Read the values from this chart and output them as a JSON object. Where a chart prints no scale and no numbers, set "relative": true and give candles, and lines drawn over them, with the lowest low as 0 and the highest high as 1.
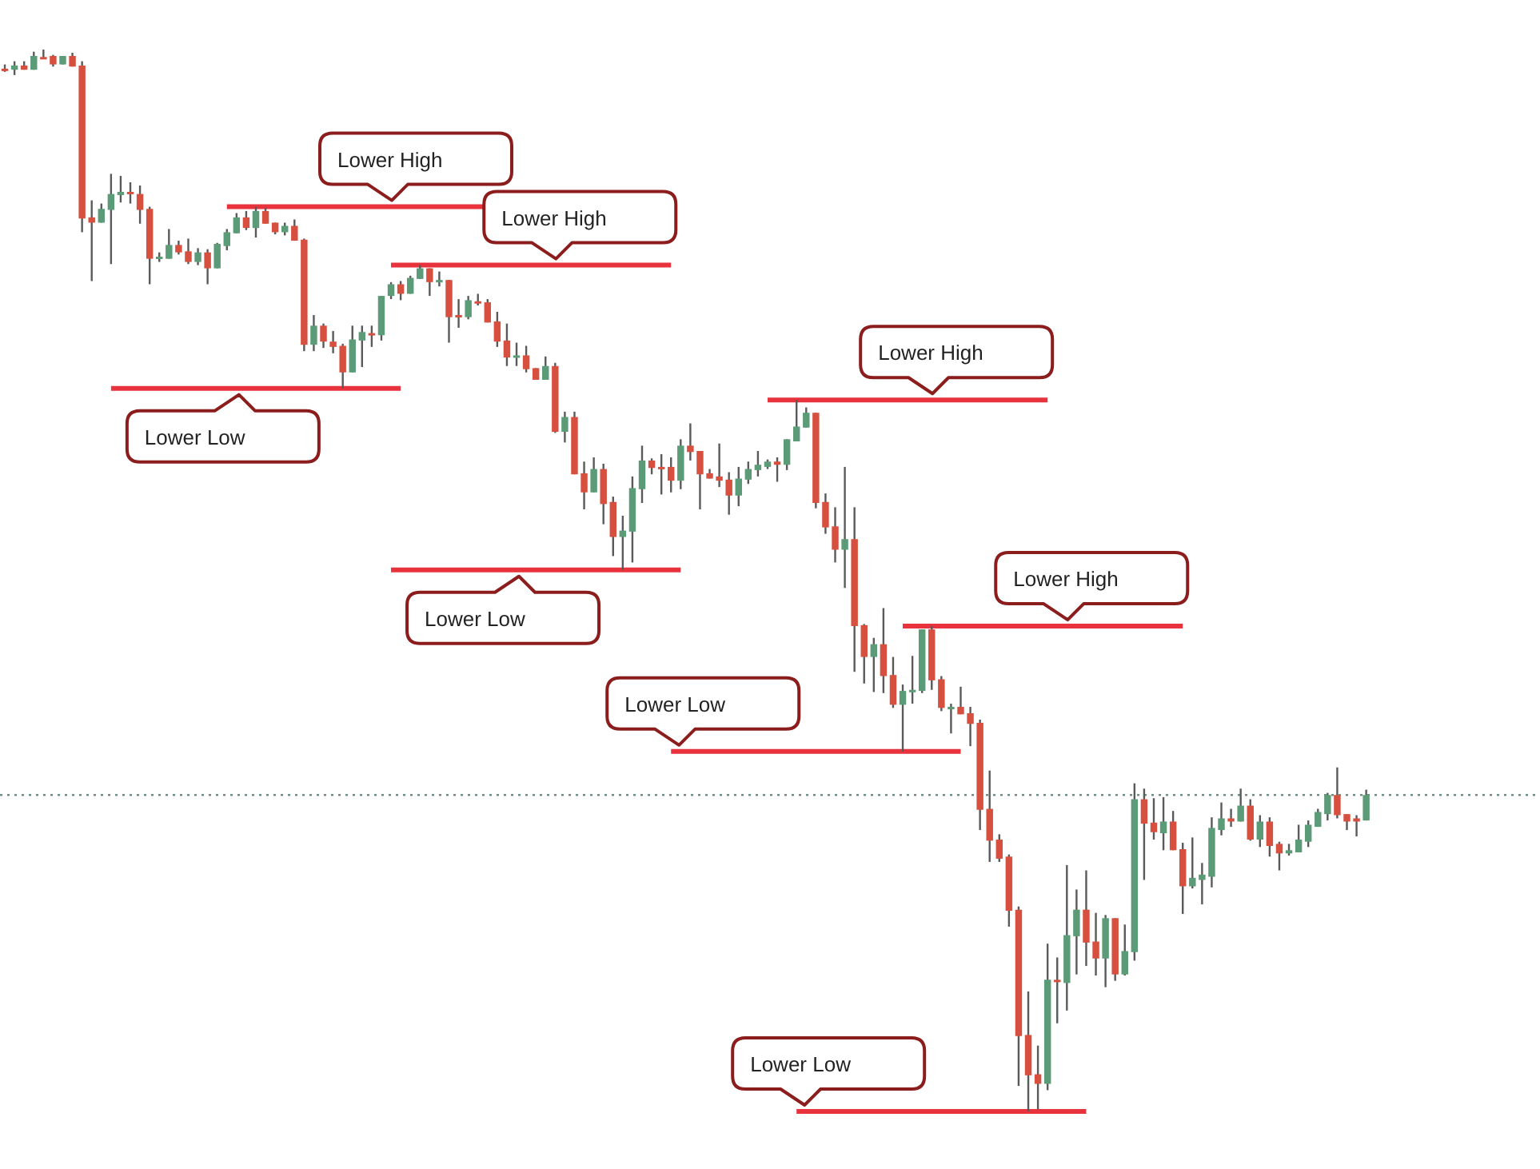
{
  "chart_data": {
    "type": "candlestick",
    "relative": true,
    "categories": [
      null,
      null,
      null,
      null,
      null,
      null,
      null,
      null,
      null,
      null,
      null,
      null,
      null,
      null,
      null,
      null,
      null,
      null,
      null,
      null,
      null,
      null,
      null,
      null,
      null,
      null,
      null,
      null,
      null,
      null,
      null,
      null,
      null,
      null,
      null,
      null,
      null,
      null,
      null,
      null,
      null,
      null,
      null,
      null,
      null,
      null,
      null,
      null,
      null,
      null,
      null,
      null,
      null,
      null,
      null,
      null,
      null,
      null,
      null,
      null,
      null,
      null,
      null,
      null,
      null,
      null,
      null,
      null,
      null,
      null,
      null,
      null,
      null,
      null,
      null,
      null,
      null,
      null,
      null,
      null,
      null,
      null,
      null,
      null,
      null,
      null,
      null,
      null,
      null,
      null,
      null,
      null,
      null,
      null,
      null,
      null,
      null,
      null,
      null,
      null,
      null,
      null,
      null,
      null,
      null,
      null,
      null,
      null,
      null,
      null,
      null,
      null,
      null,
      null,
      null,
      null,
      null,
      null,
      null,
      null,
      null,
      null,
      null,
      null,
      null,
      null,
      null,
      null,
      null,
      null,
      null,
      null,
      null,
      null,
      null,
      null,
      null,
      null,
      null,
      null,
      null,
      null
    ],
    "ohlc": [
      [
        0.982,
        0.986,
        0.979,
        0.98
      ],
      [
        0.981,
        0.989,
        0.976,
        0.985
      ],
      [
        0.985,
        0.989,
        0.981,
        0.981
      ],
      [
        0.981,
        0.998,
        0.981,
        0.994
      ],
      [
        0.993,
        1.0,
        0.991,
        0.992
      ],
      [
        0.994,
        0.995,
        0.984,
        0.986
      ],
      [
        0.986,
        0.994,
        0.986,
        0.994
      ],
      [
        0.994,
        0.997,
        0.984,
        0.984
      ],
      [
        0.985,
        0.989,
        0.828,
        0.841
      ],
      [
        0.842,
        0.858,
        0.782,
        0.837
      ],
      [
        0.837,
        0.855,
        0.837,
        0.85
      ],
      [
        0.849,
        0.883,
        0.798,
        0.864
      ],
      [
        0.863,
        0.881,
        0.856,
        0.866
      ],
      [
        0.866,
        0.875,
        0.855,
        0.865
      ],
      [
        0.864,
        0.872,
        0.836,
        0.849
      ],
      [
        0.85,
        0.852,
        0.779,
        0.803
      ],
      [
        0.804,
        0.809,
        0.8,
        0.805
      ],
      [
        0.803,
        0.831,
        0.803,
        0.816
      ],
      [
        0.816,
        0.82,
        0.807,
        0.809
      ],
      [
        0.81,
        0.822,
        0.798,
        0.8
      ],
      [
        0.8,
        0.813,
        0.797,
        0.809
      ],
      [
        0.809,
        0.812,
        0.779,
        0.794
      ],
      [
        0.794,
        0.818,
        0.794,
        0.817
      ],
      [
        0.815,
        0.831,
        0.811,
        0.828
      ],
      [
        0.827,
        0.846,
        0.827,
        0.842
      ],
      [
        0.842,
        0.848,
        0.83,
        0.832
      ],
      [
        0.832,
        0.852,
        0.823,
        0.848
      ],
      [
        0.848,
        0.851,
        0.836,
        0.836
      ],
      [
        0.837,
        0.837,
        0.826,
        0.828
      ],
      [
        0.828,
        0.837,
        0.825,
        0.834
      ],
      [
        0.834,
        0.84,
        0.82,
        0.82
      ],
      [
        0.821,
        0.822,
        0.716,
        0.722
      ],
      [
        0.722,
        0.75,
        0.716,
        0.74
      ],
      [
        0.74,
        0.742,
        0.719,
        0.725
      ],
      [
        0.725,
        0.735,
        0.714,
        0.72
      ],
      [
        0.721,
        0.723,
        0.681,
        0.696
      ],
      [
        0.696,
        0.74,
        0.696,
        0.727
      ],
      [
        0.726,
        0.74,
        0.701,
        0.734
      ],
      [
        0.733,
        0.74,
        0.72,
        0.731
      ],
      [
        0.731,
        0.768,
        0.726,
        0.768
      ],
      [
        0.768,
        0.781,
        0.765,
        0.779
      ],
      [
        0.779,
        0.782,
        0.764,
        0.77
      ],
      [
        0.77,
        0.787,
        0.77,
        0.785
      ],
      [
        0.784,
        0.797,
        0.784,
        0.794
      ],
      [
        0.794,
        0.794,
        0.768,
        0.781
      ],
      [
        0.783,
        0.791,
        0.777,
        0.783
      ],
      [
        0.783,
        0.783,
        0.724,
        0.748
      ],
      [
        0.75,
        0.765,
        0.738,
        0.749
      ],
      [
        0.748,
        0.768,
        0.746,
        0.764
      ],
      [
        0.763,
        0.77,
        0.759,
        0.762
      ],
      [
        0.762,
        0.765,
        0.743,
        0.743
      ],
      [
        0.744,
        0.753,
        0.72,
        0.725
      ],
      [
        0.726,
        0.742,
        0.702,
        0.71
      ],
      [
        0.712,
        0.724,
        0.702,
        0.712
      ],
      [
        0.712,
        0.721,
        0.696,
        0.699
      ],
      [
        0.7,
        0.7,
        0.689,
        0.689
      ],
      [
        0.689,
        0.711,
        0.689,
        0.702
      ],
      [
        0.702,
        0.705,
        0.639,
        0.64
      ],
      [
        0.64,
        0.659,
        0.63,
        0.654
      ],
      [
        0.654,
        0.659,
        0.6,
        0.6
      ],
      [
        0.601,
        0.612,
        0.567,
        0.583
      ],
      [
        0.583,
        0.616,
        0.583,
        0.605
      ],
      [
        0.605,
        0.61,
        0.553,
        0.572
      ],
      [
        0.574,
        0.579,
        0.523,
        0.541
      ],
      [
        0.541,
        0.561,
        0.51,
        0.547
      ],
      [
        0.546,
        0.598,
        0.517,
        0.587
      ],
      [
        0.586,
        0.627,
        0.573,
        0.613
      ],
      [
        0.613,
        0.615,
        0.6,
        0.606
      ],
      [
        0.607,
        0.619,
        0.581,
        0.606
      ],
      [
        0.607,
        0.616,
        0.583,
        0.594
      ],
      [
        0.594,
        0.633,
        0.586,
        0.627
      ],
      [
        0.627,
        0.648,
        0.613,
        0.621
      ],
      [
        0.622,
        0.622,
        0.567,
        0.6
      ],
      [
        0.601,
        0.605,
        0.596,
        0.596
      ],
      [
        0.598,
        0.629,
        0.588,
        0.594
      ],
      [
        0.595,
        0.602,
        0.562,
        0.58
      ],
      [
        0.58,
        0.607,
        0.57,
        0.596
      ],
      [
        0.595,
        0.612,
        0.591,
        0.605
      ],
      [
        0.604,
        0.622,
        0.598,
        0.609
      ],
      [
        0.607,
        0.614,
        0.605,
        0.612
      ],
      [
        0.612,
        0.616,
        0.593,
        0.609
      ],
      [
        0.609,
        0.633,
        0.604,
        0.633
      ],
      [
        0.631,
        0.67,
        0.631,
        0.645
      ],
      [
        0.644,
        0.663,
        0.644,
        0.658
      ],
      [
        0.658,
        0.658,
        0.568,
        0.573
      ],
      [
        0.574,
        0.582,
        0.544,
        0.55
      ],
      [
        0.551,
        0.569,
        0.517,
        0.529
      ],
      [
        0.529,
        0.607,
        0.493,
        0.539
      ],
      [
        0.539,
        0.569,
        0.414,
        0.457
      ],
      [
        0.458,
        0.459,
        0.403,
        0.428
      ],
      [
        0.428,
        0.446,
        0.395,
        0.44
      ],
      [
        0.44,
        0.474,
        0.394,
        0.41
      ],
      [
        0.411,
        0.428,
        0.38,
        0.383
      ],
      [
        0.383,
        0.402,
        0.339,
        0.396
      ],
      [
        0.397,
        0.429,
        0.384,
        0.397
      ],
      [
        0.396,
        0.454,
        0.394,
        0.454
      ],
      [
        0.454,
        0.457,
        0.397,
        0.406
      ],
      [
        0.407,
        0.41,
        0.377,
        0.38
      ],
      [
        0.381,
        0.384,
        0.356,
        0.381
      ],
      [
        0.381,
        0.4,
        0.374,
        0.374
      ],
      [
        0.375,
        0.381,
        0.344,
        0.365
      ],
      [
        0.366,
        0.369,
        0.265,
        0.284
      ],
      [
        0.285,
        0.321,
        0.235,
        0.255
      ],
      [
        0.256,
        0.261,
        0.235,
        0.238
      ],
      [
        0.24,
        0.242,
        0.174,
        0.189
      ],
      [
        0.19,
        0.193,
        0.024,
        0.071
      ],
      [
        0.072,
        0.113,
        0,
        0.034
      ],
      [
        0.035,
        0.062,
        0.002,
        0.026
      ],
      [
        0.026,
        0.158,
        0.02,
        0.124
      ],
      [
        0.124,
        0.145,
        0.083,
        0.122
      ],
      [
        0.121,
        0.232,
        0.095,
        0.166
      ],
      [
        0.165,
        0.209,
        0.129,
        0.19
      ],
      [
        0.19,
        0.227,
        0.137,
        0.159
      ],
      [
        0.16,
        0.187,
        0.128,
        0.144
      ],
      [
        0.144,
        0.185,
        0.117,
        0.182
      ],
      [
        0.182,
        0.182,
        0.123,
        0.129
      ],
      [
        0.129,
        0.176,
        0.128,
        0.151
      ],
      [
        0.15,
        0.309,
        0.142,
        0.294
      ],
      [
        0.294,
        0.304,
        0.218,
        0.271
      ],
      [
        0.272,
        0.295,
        0.256,
        0.263
      ],
      [
        0.262,
        0.296,
        0.246,
        0.273
      ],
      [
        0.273,
        0.283,
        0.246,
        0.246
      ],
      [
        0.247,
        0.253,
        0.186,
        0.212
      ],
      [
        0.212,
        0.258,
        0.21,
        0.22
      ],
      [
        0.218,
        0.234,
        0.195,
        0.223
      ],
      [
        0.221,
        0.277,
        0.211,
        0.267
      ],
      [
        0.265,
        0.291,
        0.26,
        0.276
      ],
      [
        0.276,
        0.285,
        0.268,
        0.273
      ],
      [
        0.273,
        0.304,
        0.273,
        0.288
      ],
      [
        0.288,
        0.294,
        0.255,
        0.256
      ],
      [
        0.256,
        0.279,
        0.249,
        0.273
      ],
      [
        0.273,
        0.277,
        0.24,
        0.25
      ],
      [
        0.252,
        0.254,
        0.227,
        0.243
      ],
      [
        0.243,
        0.252,
        0.241,
        0.246
      ],
      [
        0.244,
        0.27,
        0.244,
        0.256
      ],
      [
        0.254,
        0.274,
        0.249,
        0.27
      ],
      [
        0.268,
        0.285,
        0.268,
        0.282
      ],
      [
        0.28,
        0.3,
        0.274,
        0.298
      ],
      [
        0.298,
        0.324,
        0.276,
        0.279
      ],
      [
        0.28,
        0.28,
        0.265,
        0.273
      ],
      [
        0.276,
        0.279,
        0.259,
        0.273
      ],
      [
        0.274,
        0.303,
        0.274,
        0.298
      ]
    ],
    "colors": [
      "#d7503f",
      "#5c9b77",
      "#d7503f",
      "#5c9b77",
      "#d7503f",
      "#d7503f",
      "#5c9b77",
      "#d7503f",
      "#d7503f",
      "#d7503f",
      "#5c9b77",
      "#5c9b77",
      "#5c9b77",
      "#d7503f",
      "#d7503f",
      "#d7503f",
      "#5c9b77",
      "#5c9b77",
      "#d7503f",
      "#d7503f",
      "#5c9b77",
      "#d7503f",
      "#5c9b77",
      "#5c9b77",
      "#5c9b77",
      "#d7503f",
      "#5c9b77",
      "#d7503f",
      "#d7503f",
      "#5c9b77",
      "#d7503f",
      "#d7503f",
      "#5c9b77",
      "#d7503f",
      "#d7503f",
      "#d7503f",
      "#5c9b77",
      "#5c9b77",
      "#d7503f",
      "#5c9b77",
      "#5c9b77",
      "#d7503f",
      "#5c9b77",
      "#5c9b77",
      "#d7503f",
      "#5c9b77",
      "#d7503f",
      "#d7503f",
      "#5c9b77",
      "#d7503f",
      "#d7503f",
      "#d7503f",
      "#d7503f",
      "#5c9b77",
      "#d7503f",
      "#d7503f",
      "#5c9b77",
      "#d7503f",
      "#5c9b77",
      "#d7503f",
      "#d7503f",
      "#5c9b77",
      "#d7503f",
      "#d7503f",
      "#5c9b77",
      "#5c9b77",
      "#5c9b77",
      "#d7503f",
      "#d7503f",
      "#d7503f",
      "#5c9b77",
      "#d7503f",
      "#d7503f",
      "#d7503f",
      "#d7503f",
      "#d7503f",
      "#5c9b77",
      "#5c9b77",
      "#5c9b77",
      "#5c9b77",
      "#d7503f",
      "#5c9b77",
      "#5c9b77",
      "#5c9b77",
      "#d7503f",
      "#d7503f",
      "#d7503f",
      "#5c9b77",
      "#d7503f",
      "#d7503f",
      "#5c9b77",
      "#d7503f",
      "#d7503f",
      "#5c9b77",
      "#5c9b77",
      "#5c9b77",
      "#d7503f",
      "#d7503f",
      "#5c9b77",
      "#d7503f",
      "#d7503f",
      "#d7503f",
      "#d7503f",
      "#d7503f",
      "#d7503f",
      "#d7503f",
      "#d7503f",
      "#d7503f",
      "#5c9b77",
      "#d7503f",
      "#5c9b77",
      "#5c9b77",
      "#d7503f",
      "#d7503f",
      "#5c9b77",
      "#d7503f",
      "#5c9b77",
      "#5c9b77",
      "#d7503f",
      "#d7503f",
      "#5c9b77",
      "#d7503f",
      "#d7503f",
      "#5c9b77",
      "#5c9b77",
      "#5c9b77",
      "#5c9b77",
      "#d7503f",
      "#5c9b77",
      "#d7503f",
      "#5c9b77",
      "#d7503f",
      "#d7503f",
      "#5c9b77",
      "#5c9b77",
      "#5c9b77",
      "#5c9b77",
      "#5c9b77",
      "#d7503f",
      "#d7503f",
      "#d7503f",
      "#5c9b77"
    ],
    "ref_lines": [
      {
        "axis": "y",
        "value": 0.852,
        "label": "Lower High",
        "color": "#e8323c"
      },
      {
        "axis": "y",
        "value": 0.797,
        "label": "Lower High",
        "color": "#e8323c"
      },
      {
        "axis": "y",
        "value": 0.681,
        "label": "Lower Low",
        "color": "#e8323c"
      },
      {
        "axis": "y",
        "value": 0.67,
        "label": "Lower High",
        "color": "#e8323c"
      },
      {
        "axis": "y",
        "value": 0.51,
        "label": "Lower Low",
        "color": "#e8323c"
      },
      {
        "axis": "y",
        "value": 0.457,
        "label": "Lower High",
        "color": "#e8323c"
      },
      {
        "axis": "y",
        "value": 0.339,
        "label": "Lower Low",
        "color": "#e8323c"
      },
      {
        "axis": "y",
        "value": 0,
        "label": "Lower Low",
        "color": "#e8323c"
      },
      {
        "axis": "y",
        "value": 0.298,
        "color": "#6f8f84",
        "line_style": "dotted"
      }
    ]
  }
}
